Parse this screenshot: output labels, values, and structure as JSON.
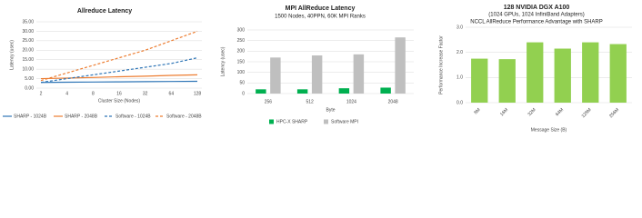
{
  "chart_data": [
    {
      "type": "line",
      "title": "Allreduce Latency",
      "x_label": "Cluster Size (Nodes)",
      "y_label": "Latency (usec)",
      "categories": [
        "2",
        "4",
        "8",
        "16",
        "32",
        "64",
        "128"
      ],
      "series": [
        {
          "name": "SHARP - 1024B",
          "color": "#2e75b6",
          "dash": false,
          "values": [
            3,
            3.1,
            3.2,
            3.3,
            3.4,
            3.5,
            3.6
          ]
        },
        {
          "name": "SHARP - 2048B",
          "color": "#ed7d31",
          "dash": false,
          "values": [
            5,
            5.3,
            5.6,
            6,
            6.3,
            6.7,
            7
          ]
        },
        {
          "name": "Software - 1024B",
          "color": "#2e75b6",
          "dash": true,
          "values": [
            3,
            5,
            7,
            9,
            11,
            13,
            16
          ]
        },
        {
          "name": "Software - 2048B",
          "color": "#ed7d31",
          "dash": true,
          "values": [
            4,
            8,
            12,
            16,
            20,
            25,
            30
          ]
        }
      ],
      "ylim": [
        0,
        35
      ],
      "yticks": [
        {
          "value": 0,
          "label": "0.00"
        },
        {
          "value": 5,
          "label": "5.00"
        },
        {
          "value": 10,
          "label": "10.00"
        },
        {
          "value": 15,
          "label": "15.00"
        },
        {
          "value": 20,
          "label": "20.00"
        },
        {
          "value": 25,
          "label": "25.00"
        },
        {
          "value": 30,
          "label": "30.00"
        },
        {
          "value": 35,
          "label": "35.00"
        }
      ],
      "grid": true
    },
    {
      "type": "bar",
      "title": "MPI AllReduce Latency",
      "subtitle": [
        "1500 Nodes, 40PPN, 60K MPI Ranks"
      ],
      "x_label": "Byte",
      "y_label": "Latency (usec)",
      "categories": [
        "256",
        "512",
        "1024",
        "2048"
      ],
      "series": [
        {
          "name": "HPC-X SHARP",
          "color": "#00b050",
          "values": [
            20,
            20,
            25,
            28
          ]
        },
        {
          "name": "Software MPI",
          "color": "#bfbfbf",
          "values": [
            170,
            180,
            185,
            265
          ]
        }
      ],
      "ylim": [
        0,
        300
      ],
      "yticks": [
        0,
        50,
        100,
        150,
        200,
        250,
        300
      ],
      "grid": true
    },
    {
      "type": "bar",
      "title": "128 NVIDIA DGX A100",
      "subtitle": [
        "(1024 GPUs, 1024 InfiniBand Adapters)",
        "NCCL AllReduce Performance Advantage with SHARP"
      ],
      "x_label": "Message Size (B)",
      "y_label": "Performance Increase Factor",
      "categories": [
        "8M",
        "16M",
        "32M",
        "64M",
        "128M",
        "256M"
      ],
      "series": [
        {
          "color": "#92d050",
          "values": [
            1.75,
            1.73,
            2.4,
            2.15,
            2.4,
            2.33
          ]
        }
      ],
      "ylim": [
        0,
        3
      ],
      "yticks": [
        {
          "value": 0,
          "label": "0.0"
        },
        {
          "value": 1,
          "label": "1.0"
        },
        {
          "value": 2,
          "label": "2.0"
        },
        {
          "value": 3,
          "label": "3.0"
        }
      ],
      "grid": true
    }
  ]
}
